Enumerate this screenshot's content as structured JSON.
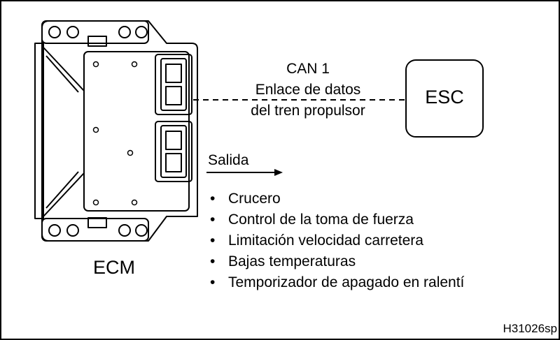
{
  "can_link": {
    "line1": "CAN 1",
    "line2": "Enlace de datos",
    "line3": "del tren propulsor"
  },
  "esc": {
    "label": "ESC"
  },
  "ecm": {
    "label": "ECM"
  },
  "output": {
    "heading": "Salida",
    "bullet": "•",
    "items": [
      "Crucero",
      "Control de la toma de fuerza",
      "Limitación velocidad carretera",
      "Bajas temperaturas",
      "Temporizador de apagado en ralentí"
    ]
  },
  "figure_code": "H31026sp"
}
